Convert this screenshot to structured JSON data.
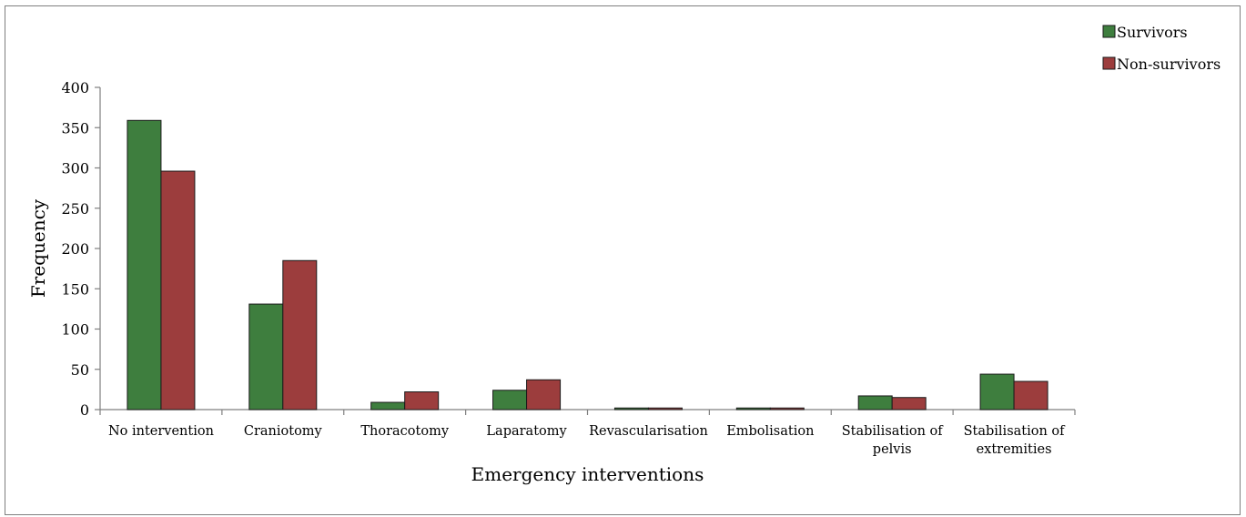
{
  "chart_data": {
    "type": "bar",
    "categories": [
      [
        "No intervention"
      ],
      [
        "Craniotomy"
      ],
      [
        "Thoracotomy"
      ],
      [
        "Laparatomy"
      ],
      [
        "Revascularisation"
      ],
      [
        "Embolisation"
      ],
      [
        "Stabilisation of",
        "pelvis"
      ],
      [
        "Stabilisation of",
        "extremities"
      ]
    ],
    "series": [
      {
        "name": "Survivors",
        "color": "#3e7e3e",
        "values": [
          359,
          131,
          9,
          24,
          2,
          2,
          17,
          44
        ]
      },
      {
        "name": "Non-survivors",
        "color": "#9c3d3d",
        "values": [
          296,
          185,
          22,
          37,
          2,
          2,
          15,
          35
        ]
      }
    ],
    "xlabel": "Emergency interventions",
    "ylabel": "Frequency",
    "ylim": [
      0,
      400
    ],
    "yticks": [
      0,
      50,
      100,
      150,
      200,
      250,
      300,
      350,
      400
    ],
    "grid": false,
    "legend_position": "top-right"
  }
}
